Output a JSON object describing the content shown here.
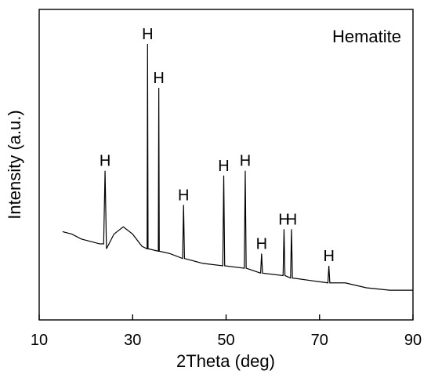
{
  "chart_data": {
    "type": "line",
    "title": "",
    "legend": "Hematite",
    "xlabel": "2Theta (deg)",
    "ylabel": "Intensity (a.u.)",
    "xlim": [
      10,
      90
    ],
    "ylim": [
      0,
      100
    ],
    "x_ticks": [
      10,
      30,
      50,
      70,
      90
    ],
    "x_tick_labels": [
      "10",
      "30",
      "50",
      "70",
      "90"
    ],
    "y_ticks_labeled": false,
    "grid": false,
    "legend_position": "top-right",
    "series": [
      {
        "values_description": "",
        "x": [
          15,
          17,
          19,
          21,
          23,
          23.8,
          24.1,
          24.4,
          26,
          28,
          30,
          32,
          33.1,
          33.2,
          33.3,
          35.5,
          35.6,
          35.7,
          38,
          40.7,
          40.9,
          41.1,
          45,
          49.3,
          49.5,
          49.7,
          53.9,
          54.1,
          54.3,
          57.4,
          57.6,
          57.8,
          62.2,
          62.4,
          62.6,
          63.8,
          64.0,
          64.2,
          68,
          71.8,
          72.0,
          72.2,
          75.5,
          80,
          85,
          90
        ],
        "y": [
          23,
          22,
          20,
          19,
          18,
          18,
          48,
          16,
          22,
          25,
          22,
          17,
          16,
          100,
          16,
          15,
          82,
          15,
          14,
          12,
          34,
          12,
          10,
          9,
          46,
          9,
          8,
          48,
          8,
          6,
          14,
          6,
          5,
          24,
          5,
          4,
          24,
          4,
          3,
          2,
          9,
          2,
          2,
          0,
          -1,
          -1
        ]
      }
    ],
    "annotations": [
      {
        "text": "H",
        "x": 24.1,
        "y": 48
      },
      {
        "text": "H",
        "x": 33.2,
        "y": 100
      },
      {
        "text": "H",
        "x": 35.6,
        "y": 82
      },
      {
        "text": "H",
        "x": 40.9,
        "y": 34
      },
      {
        "text": "H",
        "x": 49.5,
        "y": 46
      },
      {
        "text": "H",
        "x": 54.1,
        "y": 48
      },
      {
        "text": "H",
        "x": 57.6,
        "y": 14
      },
      {
        "text": "H",
        "x": 62.4,
        "y": 24
      },
      {
        "text": "H",
        "x": 64.0,
        "y": 24
      },
      {
        "text": "H",
        "x": 72.0,
        "y": 9
      }
    ]
  }
}
